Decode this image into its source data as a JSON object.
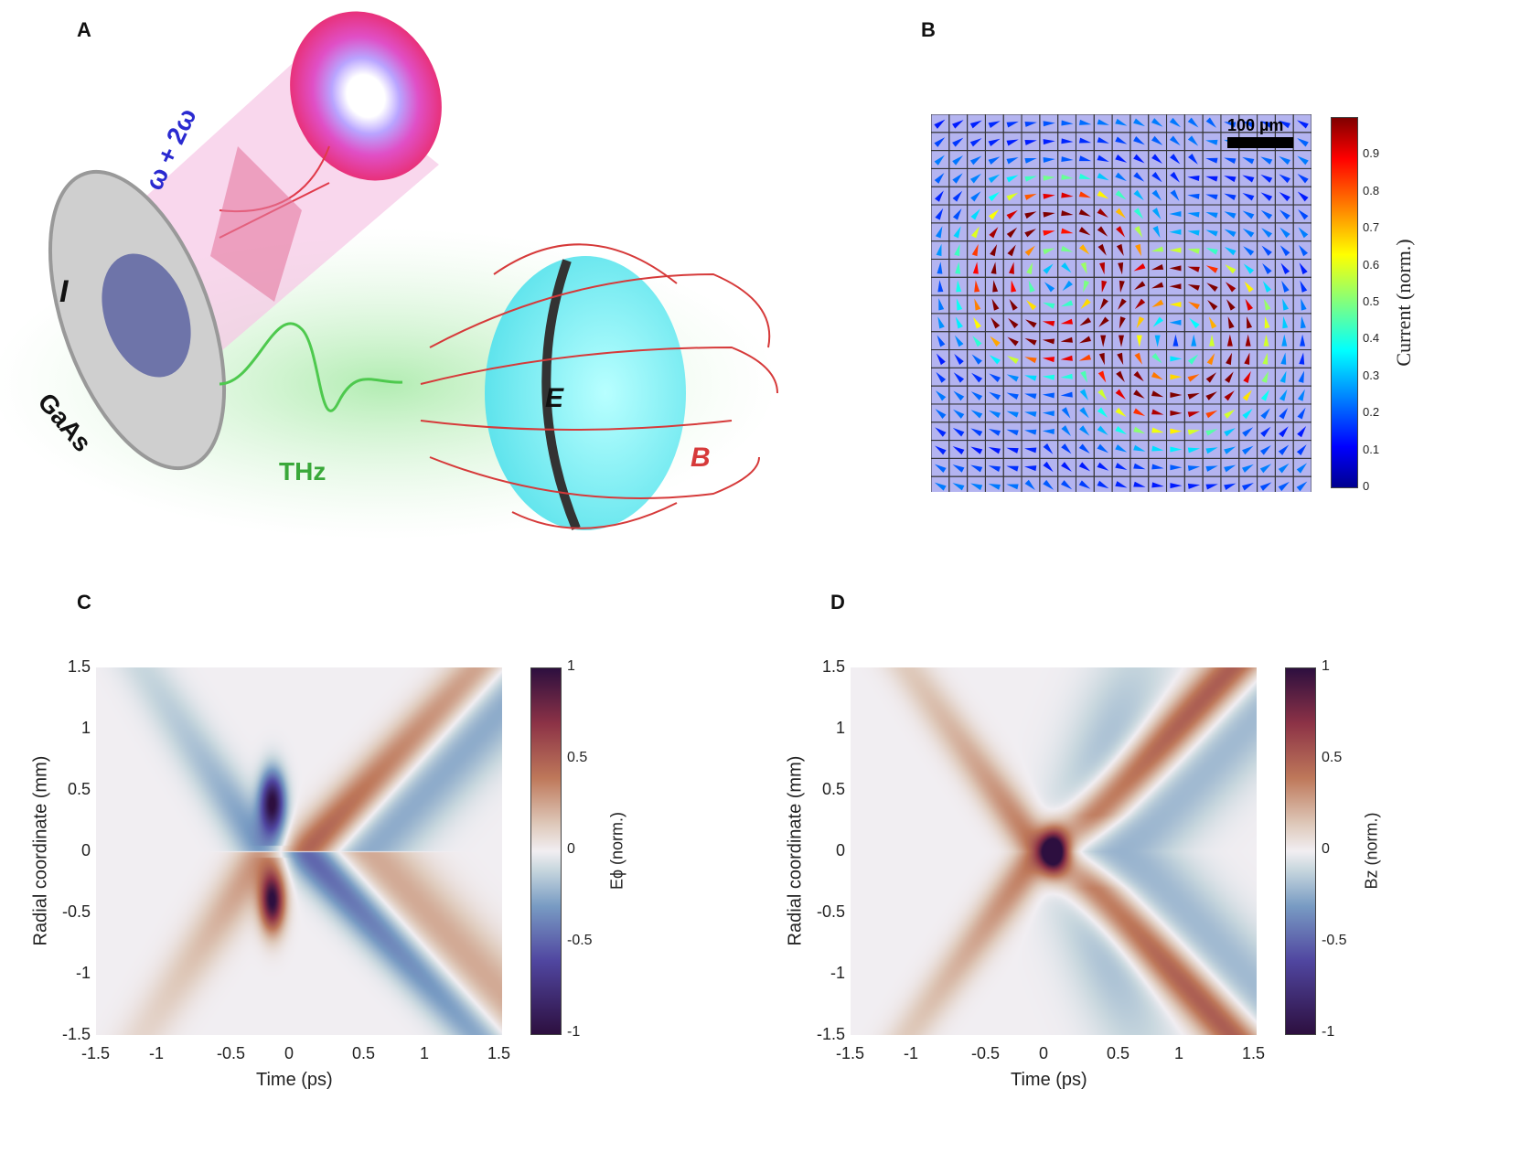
{
  "panels": {
    "a": {
      "label": "A",
      "texts": {
        "beam": "ω + 2ω",
        "current": "I",
        "sample": "GaAs",
        "thz": "THz",
        "e_field": "E",
        "b_field": "B"
      }
    },
    "b": {
      "label": "B",
      "scale_bar": "100 µm",
      "colorbar_label": "Current (norm.)",
      "colorbar_ticks": [
        "0",
        "0.1",
        "0.2",
        "0.3",
        "0.4",
        "0.5",
        "0.6",
        "0.7",
        "0.8",
        "0.9"
      ]
    },
    "c": {
      "label": "C"
    },
    "d": {
      "label": "D"
    }
  },
  "chart_data": [
    {
      "type": "heatmap",
      "panel": "C",
      "xlabel": "Time (ps)",
      "ylabel": "Radial coordinate (mm)",
      "colorbar_label": "Eϕ (norm.)",
      "xlim": [
        -1.5,
        1.5
      ],
      "ylim": [
        -1.5,
        1.5
      ],
      "clim": [
        -1,
        1
      ],
      "xticks": [
        "-1.5",
        "-1",
        "-0.5",
        "0",
        "0.5",
        "1",
        "1.5"
      ],
      "yticks": [
        "1.5",
        "1",
        "0.5",
        "0",
        "-0.5",
        "-1",
        "-1.5"
      ],
      "cticks": [
        "1",
        "0.5",
        "0",
        "-0.5",
        "-1"
      ],
      "features": "negative extremum near (t=-0.2 ps, r=0.45 mm), positive extremum near (t=-0.2 ps, r=-0.35 mm); X-shaped bands along t≈|r|"
    },
    {
      "type": "heatmap",
      "panel": "D",
      "xlabel": "Time (ps)",
      "ylabel": "Radial coordinate (mm)",
      "colorbar_label": "Bz (norm.)",
      "xlim": [
        -1.5,
        1.5
      ],
      "ylim": [
        -1.5,
        1.5
      ],
      "clim": [
        -1,
        1
      ],
      "xticks": [
        "-1.5",
        "-1",
        "-0.5",
        "0",
        "0.5",
        "1",
        "1.5"
      ],
      "yticks": [
        "1.5",
        "1",
        "0.5",
        "0",
        "-0.5",
        "-1",
        "-1.5"
      ],
      "cticks": [
        "1",
        "0.5",
        "0",
        "-0.5",
        "-1"
      ],
      "features": "positive maximum at (t=0 ps, r=0 mm); X-shaped positive bands along t≈|r|"
    }
  ]
}
